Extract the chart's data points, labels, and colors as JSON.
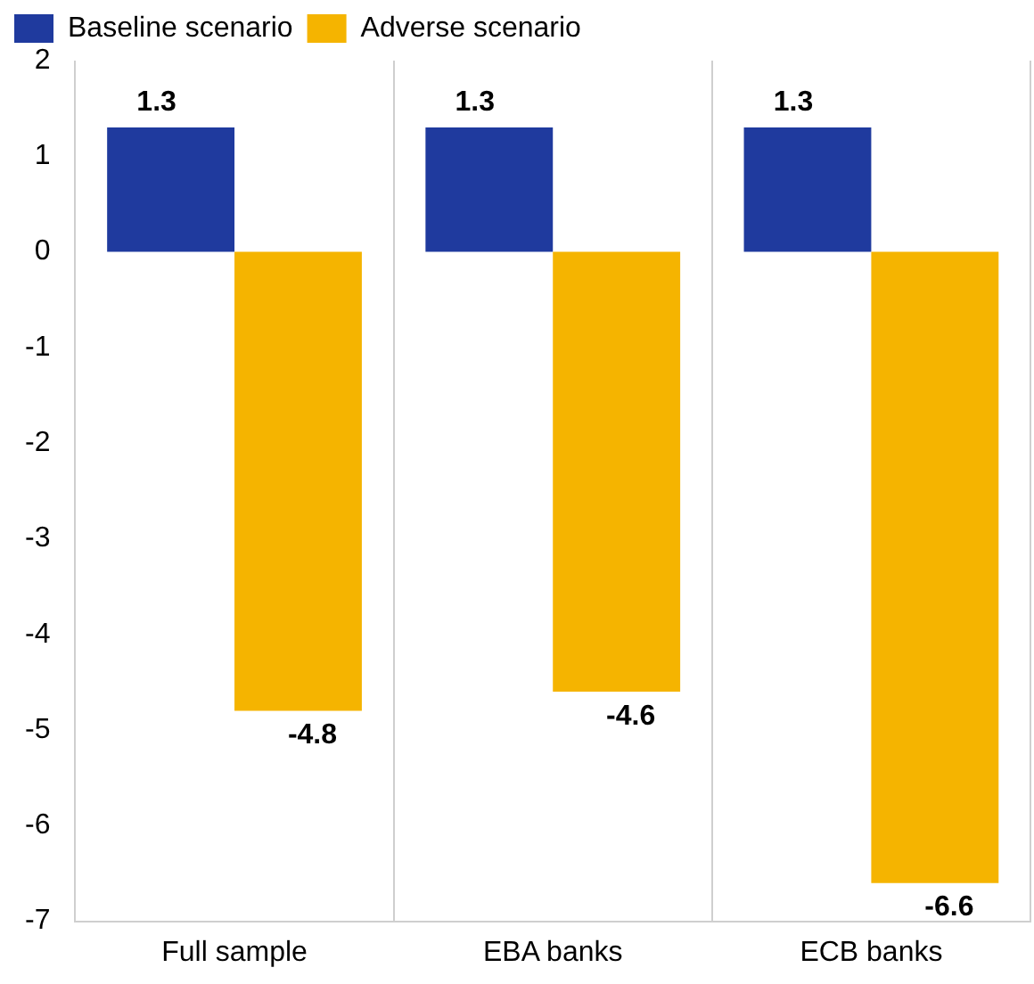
{
  "chart_data": {
    "type": "bar",
    "categories": [
      "Full sample",
      "EBA banks",
      "ECB banks"
    ],
    "series": [
      {
        "name": "Baseline scenario",
        "color": "#1f3a9e",
        "values": [
          1.3,
          1.3,
          1.3
        ]
      },
      {
        "name": "Adverse scenario",
        "color": "#f5b400",
        "values": [
          -4.8,
          -4.6,
          -6.6
        ]
      }
    ],
    "ylim": [
      -7,
      2
    ],
    "yticks": [
      -7,
      -6,
      -5,
      -4,
      -3,
      -2,
      -1,
      0,
      1,
      2
    ],
    "grid": "x",
    "legend": "top left",
    "data_labels": true
  }
}
